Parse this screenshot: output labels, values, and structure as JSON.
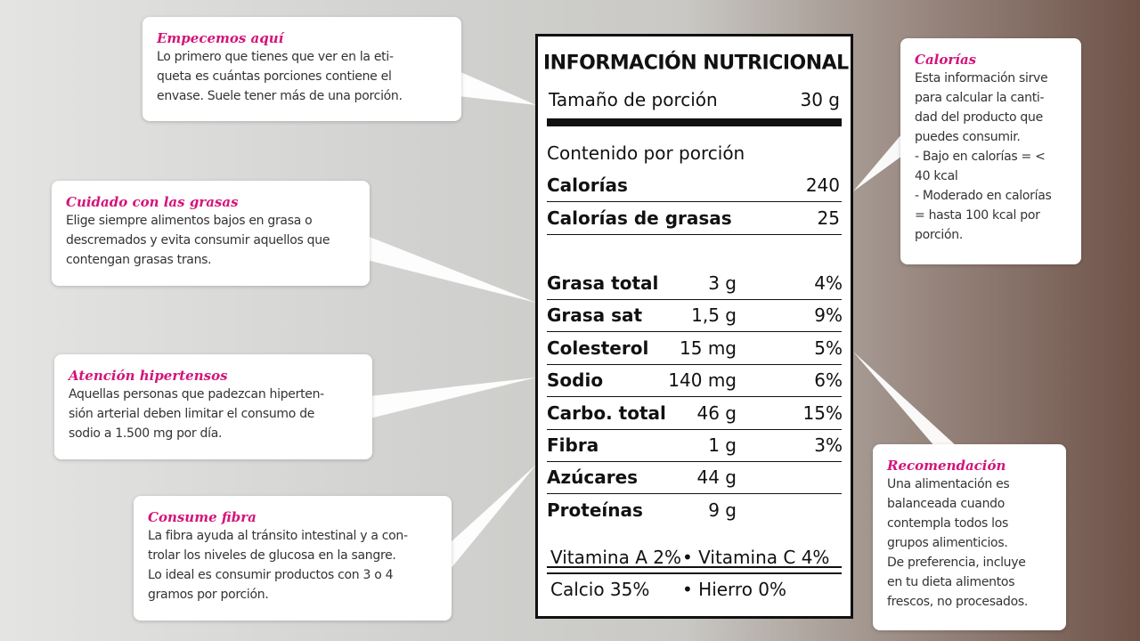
{
  "label": {
    "title": "INFORMACIÓN NUTRICIONAL",
    "serving": {
      "label": "Tamaño de porción",
      "value": "30 g"
    },
    "per_serving": "Contenido por porción",
    "calories": [
      {
        "name": "Calorías",
        "value": "240"
      },
      {
        "name": "Calorías de grasas",
        "value": "25"
      }
    ],
    "nutrients": [
      {
        "name": "Grasa total",
        "amount": "3 g",
        "percent": "4%"
      },
      {
        "name": "Grasa sat",
        "amount": "1,5 g",
        "percent": "9%"
      },
      {
        "name": "Colesterol",
        "amount": "15 mg",
        "percent": "5%"
      },
      {
        "name": "Sodio",
        "amount": "140 mg",
        "percent": "6%"
      },
      {
        "name": "Carbo. total",
        "amount": "46 g",
        "percent": "15%"
      },
      {
        "name": "Fibra",
        "amount": "1 g",
        "percent": "3%"
      },
      {
        "name": "Azúcares",
        "amount": "44 g"
      },
      {
        "name": "Proteínas",
        "amount": "9 g"
      }
    ],
    "vitamins": [
      [
        "Vitamina A 2%",
        "• Vitamina C 4%"
      ],
      [
        "Calcio 35%",
        "• Hierro 0%"
      ]
    ]
  },
  "callouts": [
    {
      "title": "Empecemos aquí",
      "lines": [
        "Lo primero que tienes que ver en la eti-",
        "queta es cuántas porciones contiene el",
        "envase. Suele tener más de una porción."
      ]
    },
    {
      "title": "Cuidado con las grasas",
      "lines": [
        "Elige siempre alimentos bajos en grasa o",
        "descremados y evita consumir aquellos que",
        "contengan grasas trans."
      ]
    },
    {
      "title": "Atención hipertensos",
      "lines": [
        "Aquellas personas que padezcan hiperten-",
        "sión arterial deben limitar el consumo de",
        "sodio a 1.500 mg por día."
      ]
    },
    {
      "title": "Consume fibra",
      "lines": [
        "La fibra ayuda al tránsito intestinal y a con-",
        "trolar los niveles de glucosa en la sangre.",
        "Lo ideal es consumir productos con 3 o 4",
        "gramos por porción."
      ]
    },
    {
      "title": "Calorías",
      "lines": [
        "Esta información sirve",
        "para calcular la canti-",
        "dad del producto que",
        "puedes consumir.",
        "- Bajo en calorías = <",
        "40 kcal",
        "- Moderado en calorías",
        "= hasta 100 kcal por",
        "porción."
      ]
    },
    {
      "title": "Recomendación",
      "lines": [
        "Una alimentación es",
        "balanceada cuando",
        "contempla todos los",
        "grupos alimenticios.",
        "De preferencia, incluye",
        "en tu dieta alimentos",
        "frescos, no procesados."
      ]
    }
  ]
}
